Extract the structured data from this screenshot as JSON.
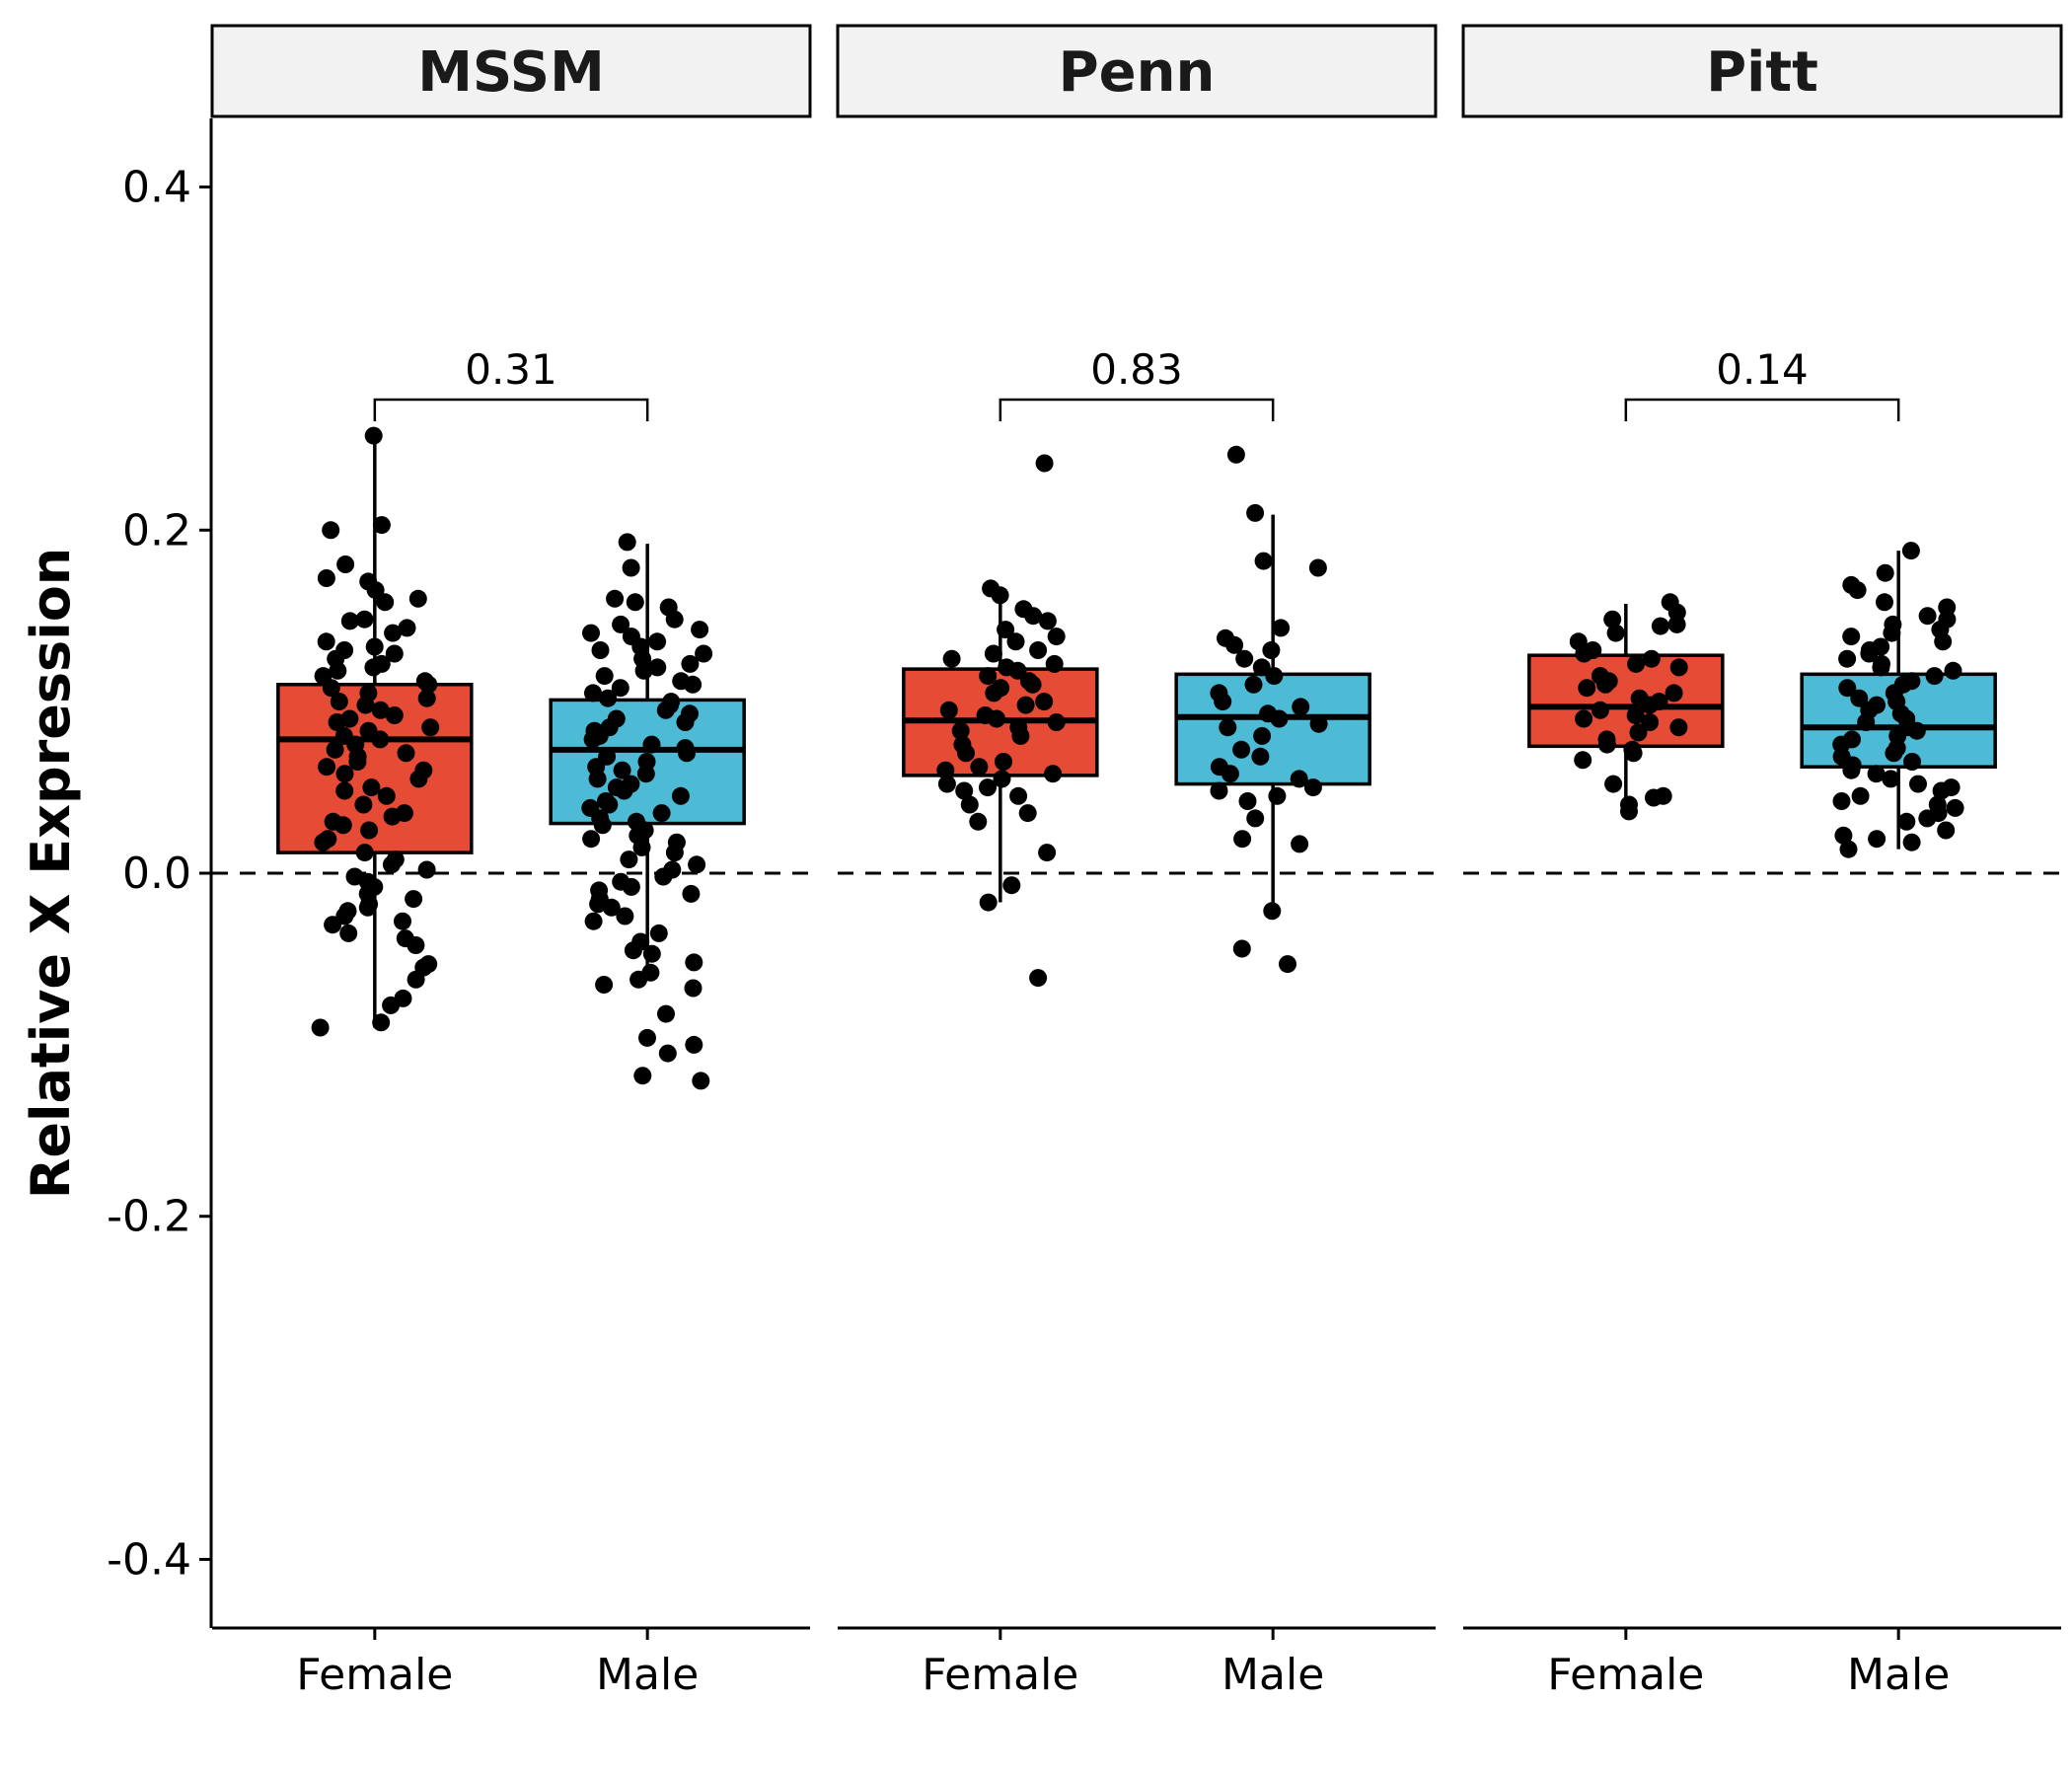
{
  "chart_data": {
    "type": "box",
    "ylabel": "Relative X Expression",
    "ylim": [
      -0.44,
      0.44
    ],
    "yticks": [
      -0.4,
      -0.2,
      0.0,
      0.2,
      0.4
    ],
    "ytick_labels": [
      "-0.4",
      "-0.2",
      "0.0",
      "0.2",
      "0.4"
    ],
    "reference_line": 0.0,
    "groups": [
      "Female",
      "Male"
    ],
    "colors": {
      "Female": "#E64B35",
      "Male": "#4DBBD5"
    },
    "panels": [
      {
        "name": "MSSM",
        "pvalue": "0.31",
        "boxes": [
          {
            "group": "Female",
            "min": -0.09,
            "q1": 0.012,
            "median": 0.078,
            "q3": 0.11,
            "max": 0.255,
            "points": [
              0.255,
              0.203,
              0.2,
              0.18,
              0.17,
              0.165,
              0.172,
              0.16,
              0.158,
              0.148,
              0.147,
              0.143,
              0.14,
              0.135,
              0.132,
              0.13,
              0.128,
              0.125,
              0.122,
              0.12,
              0.118,
              0.115,
              0.112,
              0.11,
              0.108,
              0.105,
              0.102,
              0.1,
              0.098,
              0.095,
              0.092,
              0.09,
              0.088,
              0.085,
              0.083,
              0.08,
              0.078,
              0.075,
              0.072,
              0.07,
              0.068,
              0.065,
              0.062,
              0.06,
              0.058,
              0.055,
              0.05,
              0.048,
              0.045,
              0.04,
              0.035,
              0.033,
              0.03,
              0.028,
              0.025,
              0.02,
              0.018,
              0.012,
              0.008,
              0.005,
              0.002,
              -0.002,
              -0.005,
              -0.008,
              -0.012,
              -0.015,
              -0.018,
              -0.02,
              -0.022,
              -0.025,
              -0.028,
              -0.03,
              -0.035,
              -0.038,
              -0.042,
              -0.053,
              -0.055,
              -0.062,
              -0.073,
              -0.077,
              -0.087,
              -0.09
            ]
          },
          {
            "group": "Male",
            "min": -0.06,
            "q1": 0.029,
            "median": 0.072,
            "q3": 0.101,
            "max": 0.192,
            "points": [
              0.193,
              0.178,
              0.16,
              0.158,
              0.155,
              0.148,
              0.145,
              0.142,
              0.14,
              0.138,
              0.135,
              0.132,
              0.13,
              0.128,
              0.125,
              0.122,
              0.12,
              0.118,
              0.115,
              0.112,
              0.11,
              0.108,
              0.105,
              0.102,
              0.1,
              0.098,
              0.095,
              0.093,
              0.09,
              0.088,
              0.085,
              0.083,
              0.08,
              0.078,
              0.075,
              0.073,
              0.07,
              0.068,
              0.065,
              0.062,
              0.06,
              0.058,
              0.055,
              0.052,
              0.05,
              0.048,
              0.045,
              0.042,
              0.04,
              0.038,
              0.035,
              0.032,
              0.03,
              0.028,
              0.025,
              0.022,
              0.02,
              0.018,
              0.015,
              0.012,
              0.008,
              0.005,
              0.002,
              -0.002,
              -0.005,
              -0.008,
              -0.01,
              -0.012,
              -0.015,
              -0.018,
              -0.02,
              -0.025,
              -0.028,
              -0.035,
              -0.04,
              -0.045,
              -0.047,
              -0.052,
              -0.058,
              -0.062,
              -0.065,
              -0.067,
              -0.082,
              -0.096,
              -0.1,
              -0.105,
              -0.118,
              -0.121
            ]
          }
        ]
      },
      {
        "name": "Penn",
        "pvalue": "0.83",
        "boxes": [
          {
            "group": "Female",
            "min": -0.017,
            "q1": 0.057,
            "median": 0.089,
            "q3": 0.119,
            "max": 0.165,
            "points": [
              0.239,
              0.166,
              0.162,
              0.154,
              0.15,
              0.147,
              0.142,
              0.138,
              0.135,
              0.13,
              0.128,
              0.125,
              0.122,
              0.12,
              0.118,
              0.115,
              0.112,
              0.11,
              0.108,
              0.105,
              0.1,
              0.098,
              0.095,
              0.092,
              0.09,
              0.088,
              0.085,
              0.083,
              0.08,
              0.075,
              0.07,
              0.065,
              0.062,
              0.06,
              0.058,
              0.055,
              0.052,
              0.05,
              0.048,
              0.045,
              0.04,
              0.035,
              0.03,
              0.012,
              -0.007,
              -0.017,
              -0.061
            ]
          },
          {
            "group": "Male",
            "min": -0.022,
            "q1": 0.052,
            "median": 0.091,
            "q3": 0.116,
            "max": 0.209,
            "points": [
              0.244,
              0.21,
              0.182,
              0.178,
              0.143,
              0.137,
              0.133,
              0.13,
              0.125,
              0.12,
              0.115,
              0.11,
              0.105,
              0.1,
              0.097,
              0.093,
              0.09,
              0.087,
              0.085,
              0.08,
              0.072,
              0.068,
              0.062,
              0.058,
              0.055,
              0.05,
              0.048,
              0.045,
              0.042,
              0.032,
              0.02,
              0.017,
              -0.022,
              -0.044,
              -0.053
            ]
          }
        ]
      },
      {
        "name": "Pitt",
        "pvalue": "0.14",
        "boxes": [
          {
            "group": "Female",
            "min": 0.04,
            "q1": 0.074,
            "median": 0.097,
            "q3": 0.127,
            "max": 0.157,
            "points": [
              0.158,
              0.152,
              0.148,
              0.145,
              0.144,
              0.14,
              0.135,
              0.13,
              0.128,
              0.125,
              0.122,
              0.12,
              0.115,
              0.112,
              0.11,
              0.108,
              0.105,
              0.102,
              0.1,
              0.098,
              0.095,
              0.092,
              0.09,
              0.088,
              0.085,
              0.082,
              0.078,
              0.075,
              0.072,
              0.07,
              0.066,
              0.052,
              0.045,
              0.044,
              0.04,
              0.036
            ]
          },
          {
            "group": "Male",
            "min": 0.014,
            "q1": 0.062,
            "median": 0.085,
            "q3": 0.116,
            "max": 0.188,
            "points": [
              0.188,
              0.175,
              0.168,
              0.165,
              0.158,
              0.155,
              0.15,
              0.148,
              0.145,
              0.142,
              0.14,
              0.138,
              0.135,
              0.132,
              0.13,
              0.128,
              0.125,
              0.122,
              0.12,
              0.118,
              0.115,
              0.112,
              0.11,
              0.108,
              0.105,
              0.102,
              0.1,
              0.098,
              0.095,
              0.093,
              0.09,
              0.088,
              0.085,
              0.083,
              0.08,
              0.078,
              0.075,
              0.073,
              0.07,
              0.068,
              0.065,
              0.063,
              0.06,
              0.058,
              0.055,
              0.052,
              0.05,
              0.048,
              0.045,
              0.042,
              0.04,
              0.038,
              0.035,
              0.032,
              0.03,
              0.025,
              0.022,
              0.02,
              0.018,
              0.014
            ]
          }
        ]
      }
    ]
  }
}
